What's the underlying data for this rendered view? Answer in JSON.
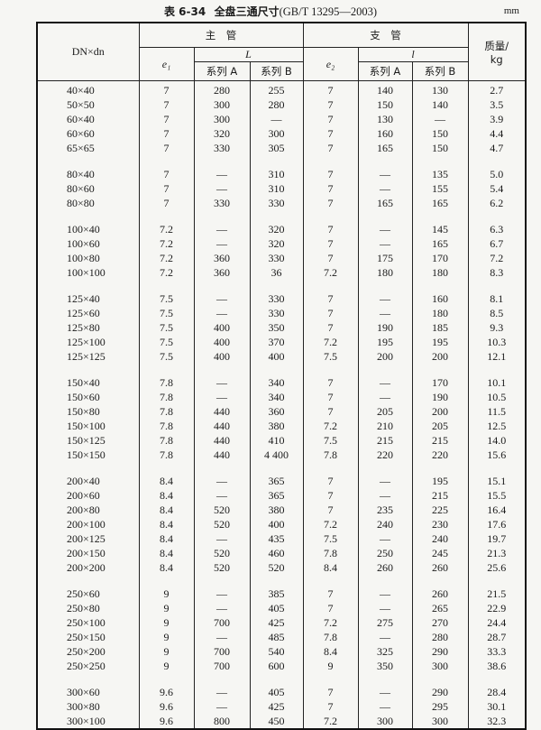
{
  "caption": {
    "number": "表 6-34",
    "title": "全盘三通尺寸",
    "standard": "(GB/T 13295—2003)",
    "unit": "mm"
  },
  "headers": {
    "dn": "DN×dn",
    "main_pipe": "主　管",
    "branch_pipe": "支　管",
    "e1": "e₁",
    "L": "L",
    "e2": "e₂",
    "l": "l",
    "series_a": "系列 A",
    "series_b": "系列 B",
    "mass": "质量/",
    "mass_unit": "kg"
  },
  "groups": [
    [
      [
        "40×40",
        "7",
        "280",
        "255",
        "7",
        "140",
        "130",
        "2.7"
      ],
      [
        "50×50",
        "7",
        "300",
        "280",
        "7",
        "150",
        "140",
        "3.5"
      ],
      [
        "60×40",
        "7",
        "300",
        "—",
        "7",
        "130",
        "—",
        "3.9"
      ],
      [
        "60×60",
        "7",
        "320",
        "300",
        "7",
        "160",
        "150",
        "4.4"
      ],
      [
        "65×65",
        "7",
        "330",
        "305",
        "7",
        "165",
        "150",
        "4.7"
      ]
    ],
    [
      [
        "80×40",
        "7",
        "—",
        "310",
        "7",
        "—",
        "135",
        "5.0"
      ],
      [
        "80×60",
        "7",
        "—",
        "310",
        "7",
        "—",
        "155",
        "5.4"
      ],
      [
        "80×80",
        "7",
        "330",
        "330",
        "7",
        "165",
        "165",
        "6.2"
      ]
    ],
    [
      [
        "100×40",
        "7.2",
        "—",
        "320",
        "7",
        "—",
        "145",
        "6.3"
      ],
      [
        "100×60",
        "7.2",
        "—",
        "320",
        "7",
        "—",
        "165",
        "6.7"
      ],
      [
        "100×80",
        "7.2",
        "360",
        "330",
        "7",
        "175",
        "170",
        "7.2"
      ],
      [
        "100×100",
        "7.2",
        "360",
        "36",
        "7.2",
        "180",
        "180",
        "8.3"
      ]
    ],
    [
      [
        "125×40",
        "7.5",
        "—",
        "330",
        "7",
        "—",
        "160",
        "8.1"
      ],
      [
        "125×60",
        "7.5",
        "—",
        "330",
        "7",
        "—",
        "180",
        "8.5"
      ],
      [
        "125×80",
        "7.5",
        "400",
        "350",
        "7",
        "190",
        "185",
        "9.3"
      ],
      [
        "125×100",
        "7.5",
        "400",
        "370",
        "7.2",
        "195",
        "195",
        "10.3"
      ],
      [
        "125×125",
        "7.5",
        "400",
        "400",
        "7.5",
        "200",
        "200",
        "12.1"
      ]
    ],
    [
      [
        "150×40",
        "7.8",
        "—",
        "340",
        "7",
        "—",
        "170",
        "10.1"
      ],
      [
        "150×60",
        "7.8",
        "—",
        "340",
        "7",
        "—",
        "190",
        "10.5"
      ],
      [
        "150×80",
        "7.8",
        "440",
        "360",
        "7",
        "205",
        "200",
        "11.5"
      ],
      [
        "150×100",
        "7.8",
        "440",
        "380",
        "7.2",
        "210",
        "205",
        "12.5"
      ],
      [
        "150×125",
        "7.8",
        "440",
        "410",
        "7.5",
        "215",
        "215",
        "14.0"
      ],
      [
        "150×150",
        "7.8",
        "440",
        "4 400",
        "7.8",
        "220",
        "220",
        "15.6"
      ]
    ],
    [
      [
        "200×40",
        "8.4",
        "—",
        "365",
        "7",
        "—",
        "195",
        "15.1"
      ],
      [
        "200×60",
        "8.4",
        "—",
        "365",
        "7",
        "—",
        "215",
        "15.5"
      ],
      [
        "200×80",
        "8.4",
        "520",
        "380",
        "7",
        "235",
        "225",
        "16.4"
      ],
      [
        "200×100",
        "8.4",
        "520",
        "400",
        "7.2",
        "240",
        "230",
        "17.6"
      ],
      [
        "200×125",
        "8.4",
        "—",
        "435",
        "7.5",
        "—",
        "240",
        "19.7"
      ],
      [
        "200×150",
        "8.4",
        "520",
        "460",
        "7.8",
        "250",
        "245",
        "21.3"
      ],
      [
        "200×200",
        "8.4",
        "520",
        "520",
        "8.4",
        "260",
        "260",
        "25.6"
      ]
    ],
    [
      [
        "250×60",
        "9",
        "—",
        "385",
        "7",
        "—",
        "260",
        "21.5"
      ],
      [
        "250×80",
        "9",
        "—",
        "405",
        "7",
        "—",
        "265",
        "22.9"
      ],
      [
        "250×100",
        "9",
        "700",
        "425",
        "7.2",
        "275",
        "270",
        "24.4"
      ],
      [
        "250×150",
        "9",
        "—",
        "485",
        "7.8",
        "—",
        "280",
        "28.7"
      ],
      [
        "250×200",
        "9",
        "700",
        "540",
        "8.4",
        "325",
        "290",
        "33.3"
      ],
      [
        "250×250",
        "9",
        "700",
        "600",
        "9",
        "350",
        "300",
        "38.6"
      ]
    ],
    [
      [
        "300×60",
        "9.6",
        "—",
        "405",
        "7",
        "—",
        "290",
        "28.4"
      ],
      [
        "300×80",
        "9.6",
        "—",
        "425",
        "7",
        "—",
        "295",
        "30.1"
      ],
      [
        "300×100",
        "9.6",
        "800",
        "450",
        "7.2",
        "300",
        "300",
        "32.3"
      ]
    ]
  ]
}
